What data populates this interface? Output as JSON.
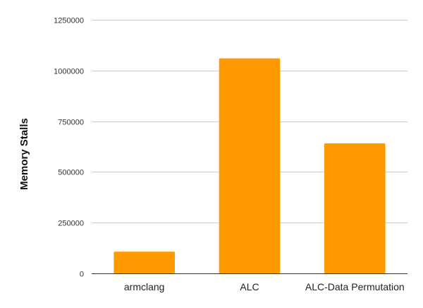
{
  "chart_data": {
    "type": "bar",
    "title": "",
    "xlabel": "",
    "ylabel": "Memory Stalls",
    "categories": [
      "armclang",
      "ALC",
      "ALC-Data Permutation"
    ],
    "values": [
      107000,
      1060000,
      641000
    ],
    "ylim": [
      0,
      1250000
    ],
    "yticks": [
      0,
      250000,
      500000,
      750000,
      1000000,
      1250000
    ],
    "ytick_labels": [
      "0",
      "250000",
      "500000",
      "750000",
      "1000000",
      "1250000"
    ],
    "grid": true,
    "legend": "none",
    "bar_color": "#FF9900"
  }
}
